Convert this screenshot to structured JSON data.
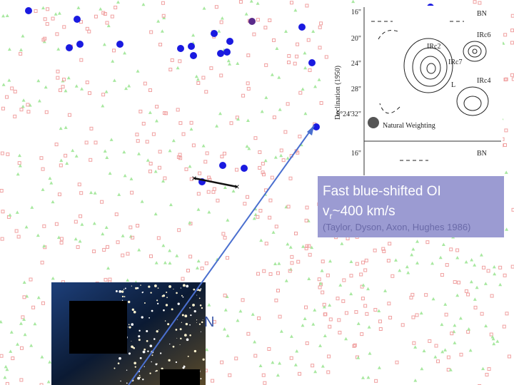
{
  "label_box": {
    "title": "Fast blue-shifted OI",
    "velocity_symbol": "v",
    "velocity_subscript": "r",
    "velocity_value": "~400 km/s",
    "citation": "(Taylor, Dyson, Axon, Hughes 1986)"
  },
  "inset": {
    "axis_label": "Declination (1950)",
    "ticks": [
      "16\"",
      "20\"",
      "24\"",
      "28\"",
      "5°24'32\"",
      "16\""
    ],
    "sources": [
      "BN",
      "IRc2",
      "IRc6",
      "IRc7",
      "IRc4",
      "L",
      "BN"
    ],
    "beam_label": "Natural Weighting"
  },
  "photo_label": "N"
}
